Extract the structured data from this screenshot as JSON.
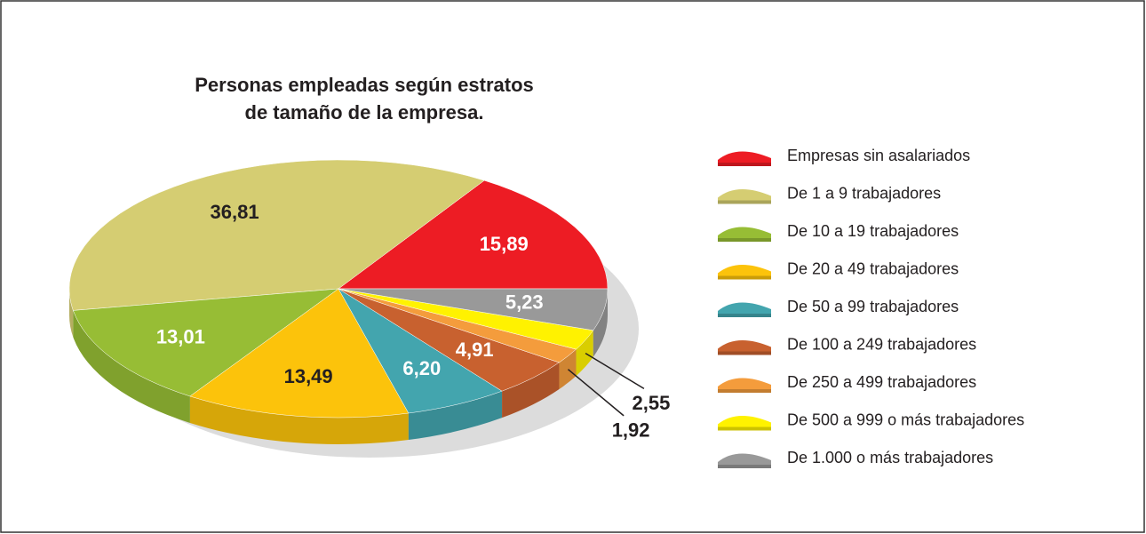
{
  "chart_data": {
    "type": "pie",
    "title": [
      "Personas empleadas según estratos",
      "de tamaño de la empresa."
    ],
    "categories": [
      "Empresas sin asalariados",
      "De 1 a 9 trabajadores",
      "De 10 a 19 trabajadores",
      "De 20 a 49 trabajadores",
      "De 50 a 99 trabajadores",
      "De 100 a 249 trabajadores",
      "De 250 a 499 trabajadores",
      "De 500 a 999 o más trabajadores",
      "De 1.000 o más trabajadores"
    ],
    "values": [
      15.89,
      36.81,
      13.01,
      13.49,
      6.2,
      4.91,
      1.92,
      2.55,
      5.23
    ],
    "value_labels": [
      "15,89",
      "36,81",
      "13,01",
      "13,49",
      "6,20",
      "4,91",
      "1,92",
      "2,55",
      "5,23"
    ],
    "colors": [
      "#ed1c24",
      "#d5cd72",
      "#97bd35",
      "#fcc30b",
      "#43a5ae",
      "#c8612f",
      "#f49c3c",
      "#fff200",
      "#999999"
    ],
    "legend": "right"
  }
}
